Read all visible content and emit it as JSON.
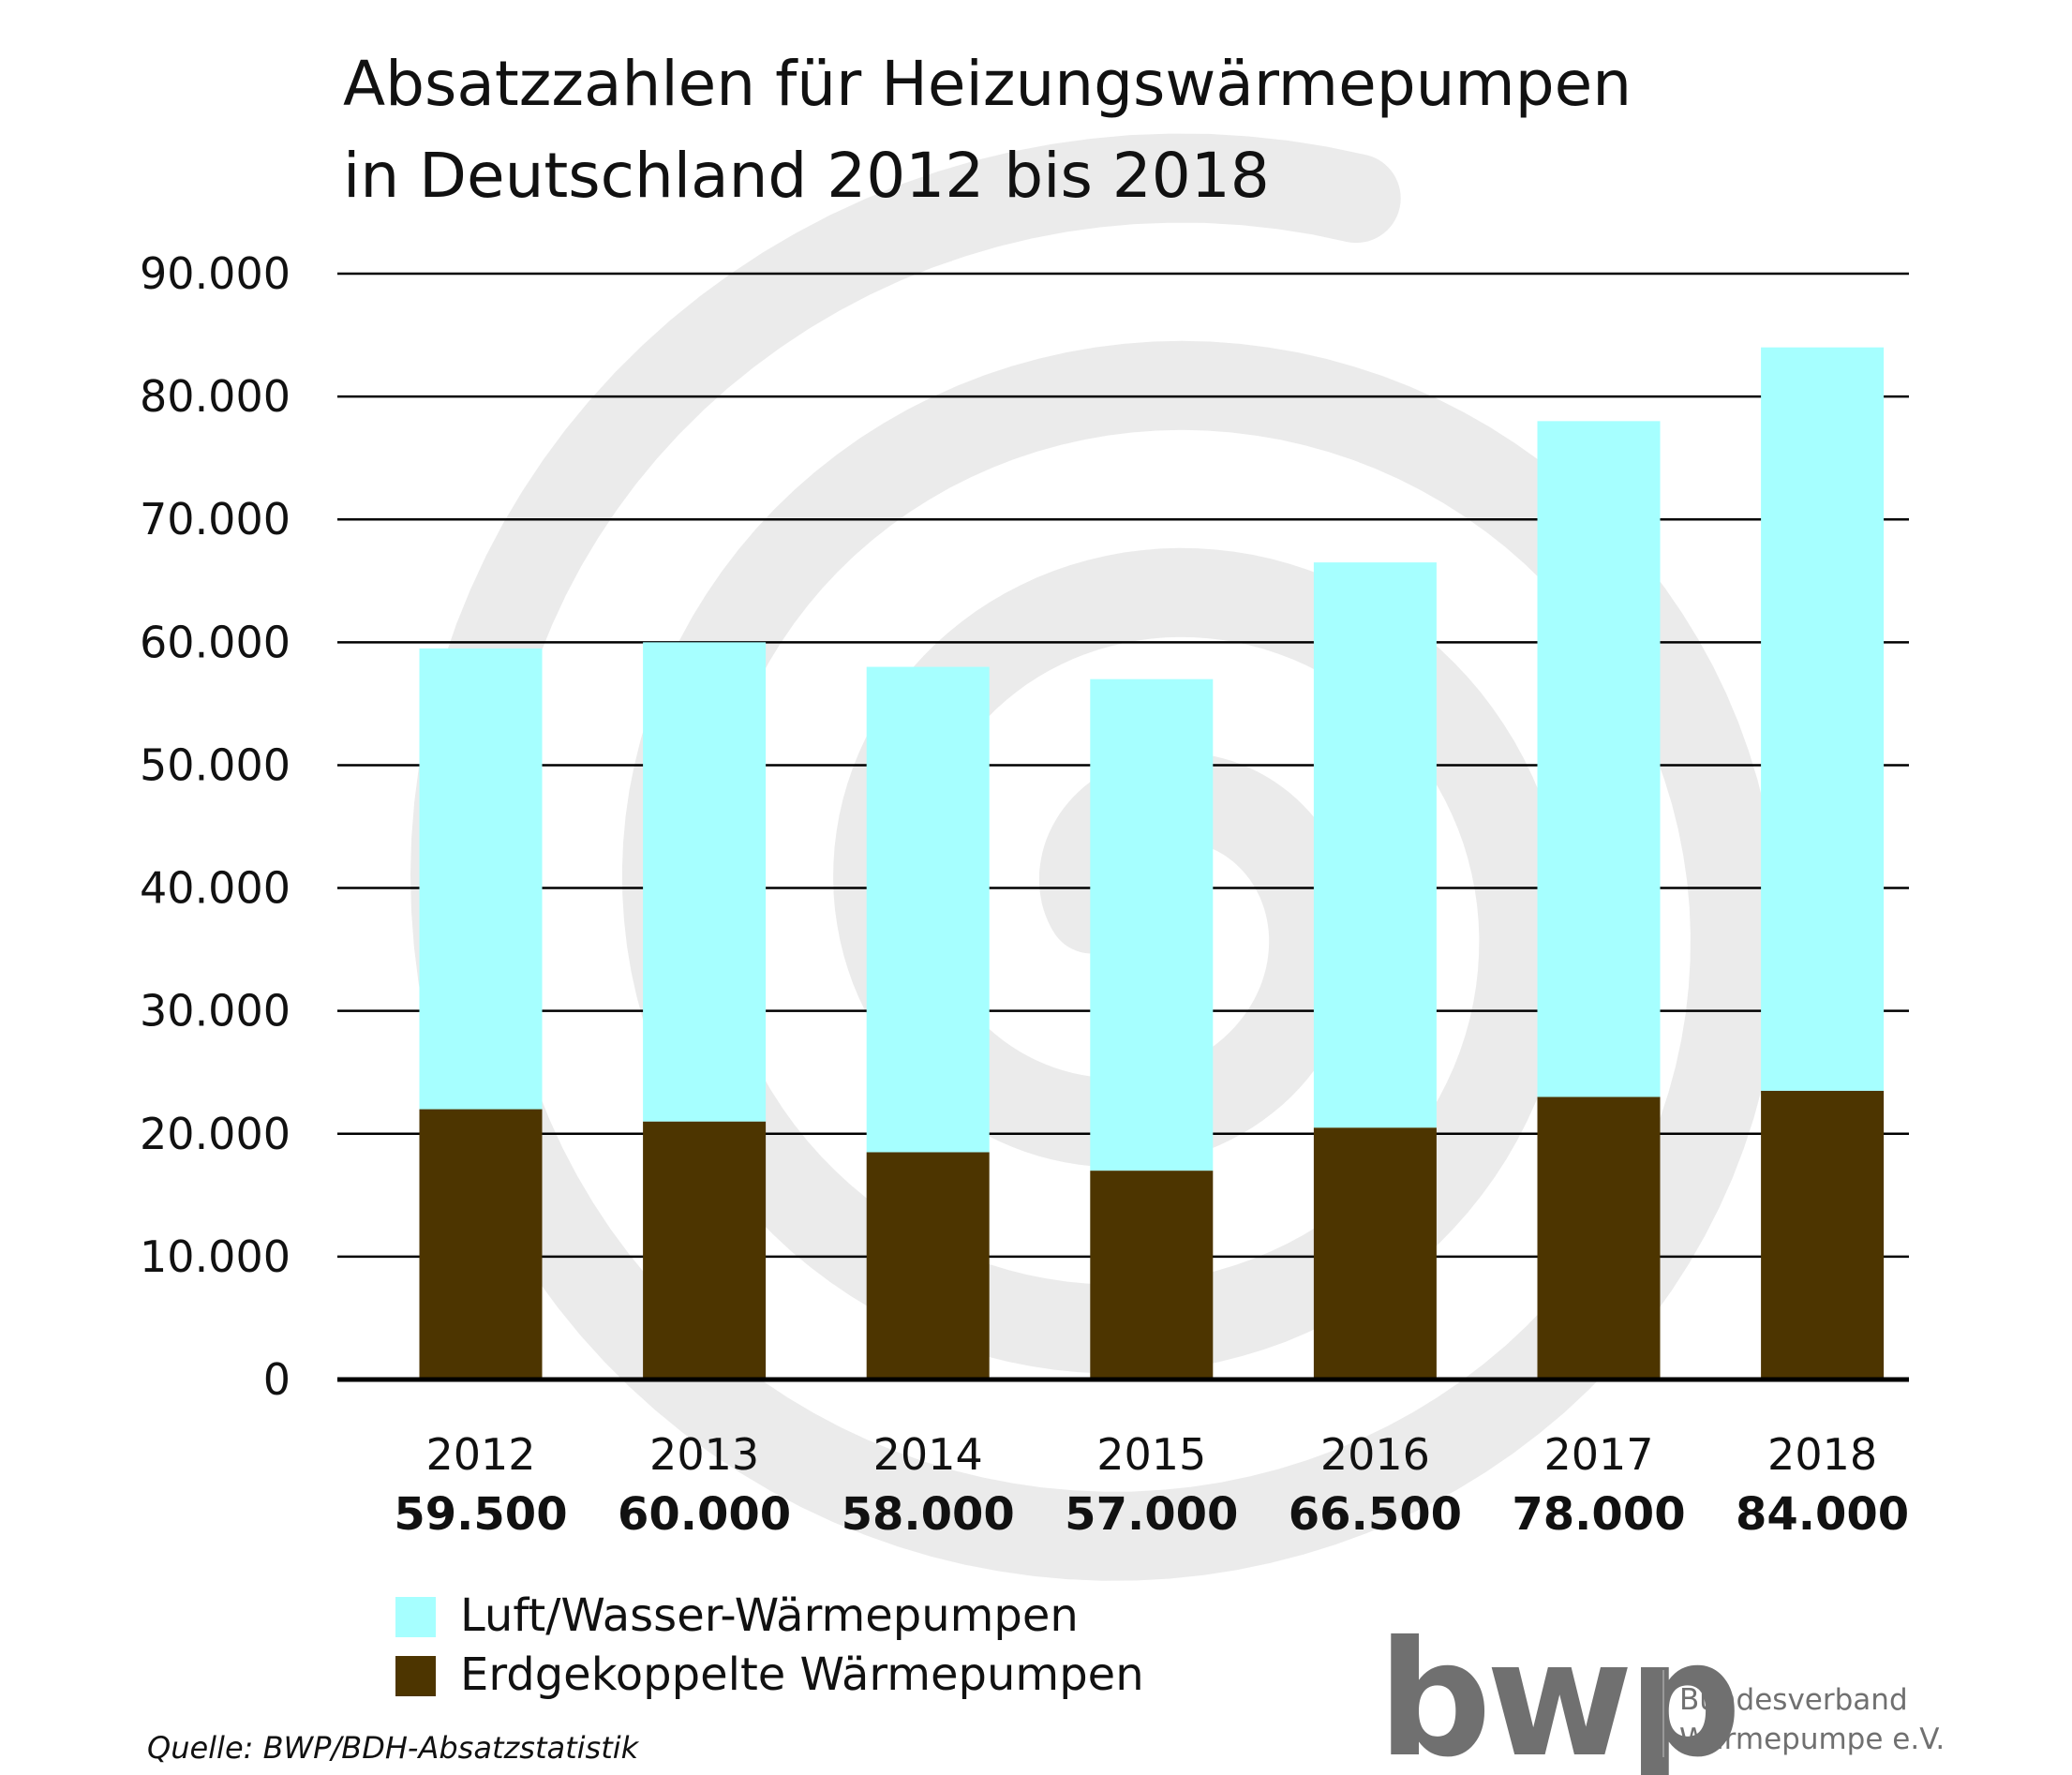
{
  "chart_data": {
    "type": "stacked-bar",
    "title": [
      "Absatzzahlen für Heizungswärmepumpen",
      "in Deutschland 2012 bis 2018"
    ],
    "categories": [
      "2012",
      "2013",
      "2014",
      "2015",
      "2016",
      "2017",
      "2018"
    ],
    "series": [
      {
        "name": "Erdgekoppelte Wärmepumpen",
        "color": "#4d3500",
        "values": [
          22000,
          21000,
          18500,
          17000,
          20500,
          23000,
          23500
        ]
      },
      {
        "name": "Luft/Wasser-Wärmepumpen",
        "color": "#a6ffff",
        "values": [
          37500,
          39000,
          39500,
          40000,
          46000,
          55000,
          60500
        ]
      }
    ],
    "totals": {
      "values": [
        59500,
        60000,
        58000,
        57000,
        66500,
        78000,
        84000
      ],
      "value_labels": [
        "59.500",
        "60.000",
        "58.000",
        "57.000",
        "66.500",
        "78.000",
        "84.000"
      ]
    },
    "ylim": [
      0,
      90000
    ],
    "yticks": [
      0,
      {
        "value": 10000,
        "label": "10.000"
      },
      {
        "value": 20000,
        "label": "20.000"
      },
      {
        "value": 30000,
        "label": "30.000"
      },
      {
        "value": 40000,
        "label": "40.000"
      },
      {
        "value": 50000,
        "label": "50.000"
      },
      {
        "value": 60000,
        "label": "60.000"
      },
      {
        "value": 70000,
        "label": "70.000"
      },
      {
        "value": 80000,
        "label": "80.000"
      },
      {
        "value": 90000,
        "label": "90.000"
      }
    ],
    "grid": true,
    "legend_order": [
      1,
      0
    ]
  },
  "source": "Quelle: BWP/BDH-Absatzstatistik",
  "logo": {
    "mark": "bwp",
    "line1": "Bundesverband",
    "line2": "Wärmepumpe e.V."
  }
}
